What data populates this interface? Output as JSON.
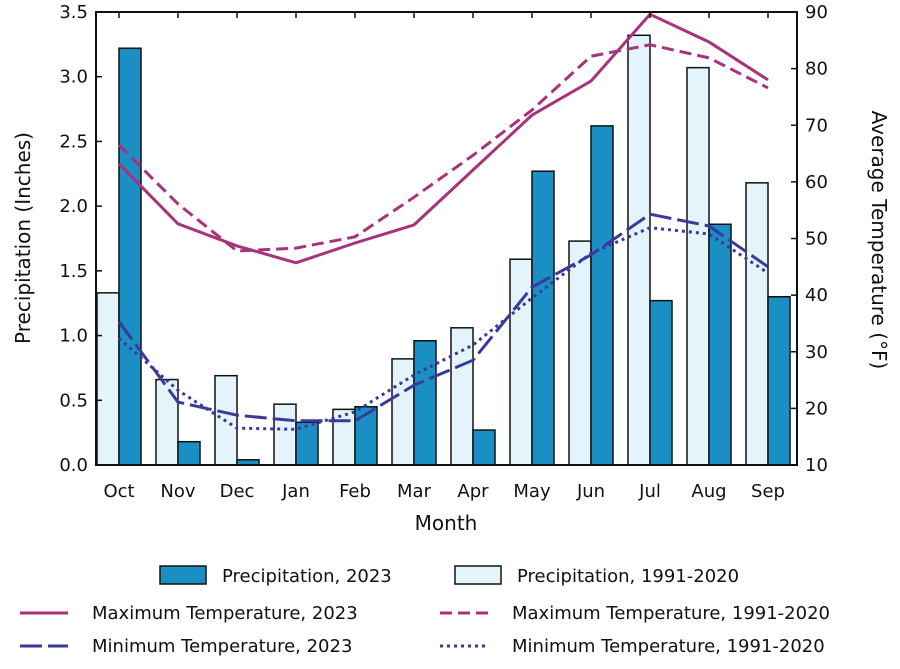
{
  "chart_data": {
    "type": "bar",
    "xlabel": "Month",
    "ylabel": "Precipitation (Inches)",
    "y2label": "Average Temperature (°F)",
    "categories": [
      "Oct",
      "Nov",
      "Dec",
      "Jan",
      "Feb",
      "Mar",
      "Apr",
      "May",
      "Jun",
      "Jul",
      "Aug",
      "Sep"
    ],
    "ylim": [
      0,
      3.5
    ],
    "yticks": [
      "0.0",
      "0.5",
      "1.0",
      "1.5",
      "2.0",
      "2.5",
      "3.0",
      "3.5"
    ],
    "y2lim": [
      10,
      90
    ],
    "y2ticks": [
      "10",
      "20",
      "30",
      "40",
      "50",
      "60",
      "70",
      "80",
      "90"
    ],
    "bar_series": [
      {
        "name": "Precipitation, 1991-2020",
        "color": "#e3f4fb",
        "values": [
          1.33,
          0.66,
          0.69,
          0.47,
          0.43,
          0.82,
          1.06,
          1.59,
          1.73,
          3.32,
          3.07,
          2.18
        ]
      },
      {
        "name": "Precipitation, 2023",
        "color": "#1a8fc4",
        "values": [
          3.22,
          0.18,
          0.04,
          0.33,
          0.45,
          0.96,
          0.27,
          2.27,
          2.62,
          1.27,
          1.86,
          1.3
        ]
      }
    ],
    "line_series": [
      {
        "name": "Maximum Temperature, 2023",
        "color": "#a8327c",
        "style": "solid",
        "axis": "right",
        "values": [
          63.2,
          52.6,
          48.7,
          45.7,
          49.2,
          52.4,
          62.1,
          71.8,
          77.8,
          89.6,
          84.7,
          78.0
        ]
      },
      {
        "name": "Maximum Temperature, 1991-2020",
        "color": "#a8327c",
        "style": "dashed",
        "axis": "right",
        "values": [
          66.5,
          56.1,
          47.8,
          48.3,
          50.3,
          57.3,
          64.7,
          72.7,
          82.2,
          84.2,
          81.9,
          76.6
        ]
      },
      {
        "name": "Minimum Temperature, 2023",
        "color": "#3b3a9c",
        "style": "longdash",
        "axis": "right",
        "values": [
          35.3,
          21.1,
          18.8,
          17.8,
          17.8,
          24.1,
          28.5,
          41.4,
          47.1,
          54.3,
          52.2,
          45.0
        ]
      },
      {
        "name": "Minimum Temperature, 1991-2020",
        "color": "#3b3a9c",
        "style": "dotted",
        "axis": "right",
        "values": [
          32.4,
          23.2,
          16.5,
          16.3,
          19.4,
          25.9,
          31.2,
          39.5,
          47.4,
          51.9,
          50.8,
          43.9
        ]
      }
    ],
    "grid": false,
    "legend_position": "bottom"
  }
}
